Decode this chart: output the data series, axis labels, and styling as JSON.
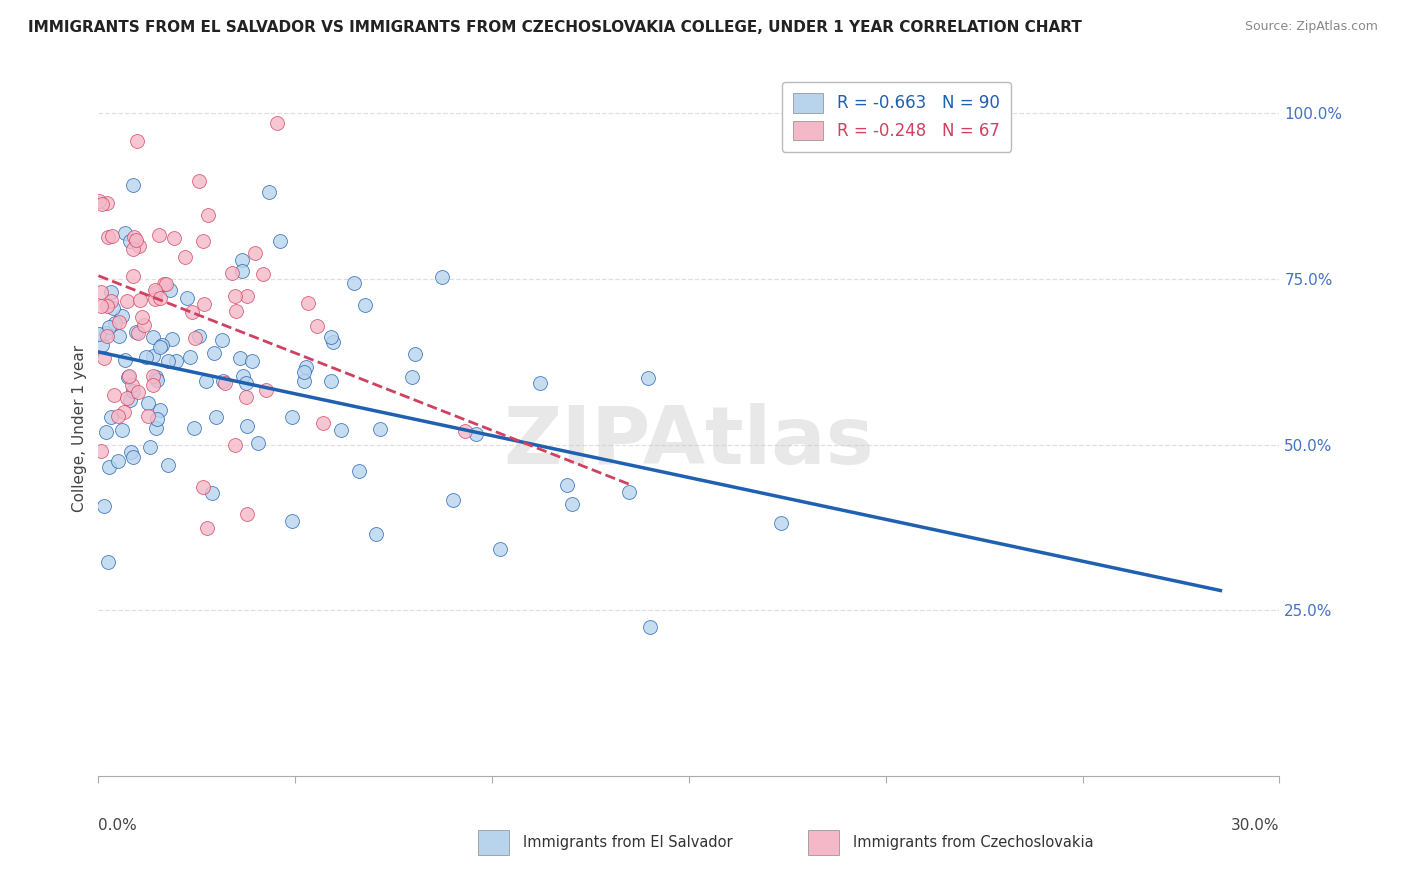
{
  "title": "IMMIGRANTS FROM EL SALVADOR VS IMMIGRANTS FROM CZECHOSLOVAKIA COLLEGE, UNDER 1 YEAR CORRELATION CHART",
  "source": "Source: ZipAtlas.com",
  "ylabel": "College, Under 1 year",
  "right_yticks": [
    "100.0%",
    "75.0%",
    "50.0%",
    "25.0%"
  ],
  "right_ytick_vals": [
    1.0,
    0.75,
    0.5,
    0.25
  ],
  "series1": {
    "name": "Immigrants from El Salvador",
    "color": "#b8d4ed",
    "line_color": "#2060b0",
    "R": -0.663,
    "N": 90,
    "line_x0": 0.0,
    "line_x1": 0.285,
    "line_y0": 0.64,
    "line_y1": 0.28
  },
  "series2": {
    "name": "Immigrants from Czechoslovakia",
    "color": "#f5b8c8",
    "line_color": "#d04060",
    "R": -0.248,
    "N": 67,
    "line_x0": 0.0,
    "line_x1": 0.135,
    "line_y0": 0.755,
    "line_y1": 0.44
  },
  "xlim": [
    0.0,
    0.3
  ],
  "ylim": [
    0.0,
    1.05
  ],
  "watermark": "ZIPAtlas",
  "background_color": "#ffffff",
  "grid_color": "#d8d8d8",
  "xtick_vals": [
    0.0,
    0.05,
    0.1,
    0.15,
    0.2,
    0.25,
    0.3
  ]
}
